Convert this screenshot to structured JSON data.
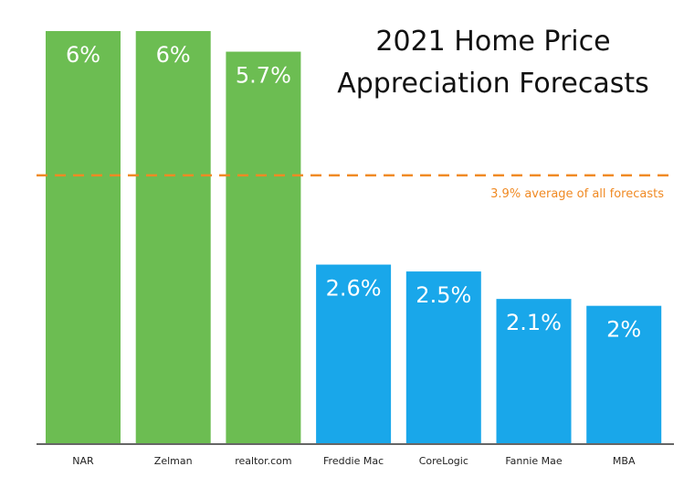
{
  "chart_data": {
    "type": "bar",
    "title_lines": [
      "2021 Home Price",
      "Appreciation Forecasts"
    ],
    "categories": [
      "NAR",
      "Zelman",
      "realtor.com",
      "Freddie Mac",
      "CoreLogic",
      "Fannie Mae",
      "MBA"
    ],
    "values": [
      6,
      6,
      5.7,
      2.6,
      2.5,
      2.1,
      2
    ],
    "value_labels": [
      "6%",
      "6%",
      "5.7%",
      "2.6%",
      "2.5%",
      "2.1%",
      "2%"
    ],
    "bar_colors": [
      "#6cbd52",
      "#6cbd52",
      "#6cbd52",
      "#19a7ea",
      "#19a7ea",
      "#19a7ea",
      "#19a7ea"
    ],
    "reference_line": {
      "value": 3.9,
      "label": "3.9% average of all forecasts",
      "color": "#f08a24",
      "style": "dashed"
    },
    "ylim": [
      0,
      6
    ],
    "grid": false,
    "legend": "none",
    "xlabel": "",
    "ylabel": ""
  }
}
